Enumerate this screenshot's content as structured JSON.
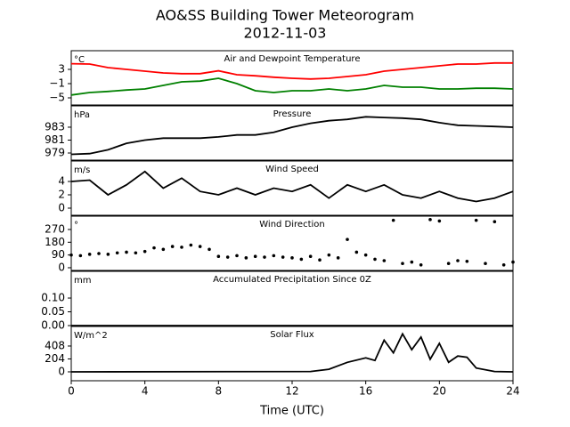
{
  "title": "AO&SS Building Tower Meteorogram",
  "subtitle": "2012-11-03",
  "xlabel": "Time (UTC)",
  "chart_data": [
    {
      "type": "line",
      "title": "Air and Dewpoint Temperature",
      "unit": "°C",
      "xlim": [
        0,
        24
      ],
      "ylim": [
        -7,
        8.25
      ],
      "yticks": [
        {
          "value": -5,
          "label": "−5"
        },
        {
          "value": -1,
          "label": "−1"
        },
        3
      ],
      "x": [
        0,
        1,
        2,
        3,
        4,
        5,
        6,
        7,
        8,
        9,
        10,
        11,
        12,
        13,
        14,
        15,
        16,
        17,
        18,
        19,
        20,
        21,
        22,
        23,
        24
      ],
      "series": [
        {
          "name": "Air Temperature",
          "color": "#ff0000",
          "values": [
            4.6,
            4.5,
            3.5,
            3,
            2.5,
            2,
            1.8,
            1.8,
            2.6,
            1.5,
            1.2,
            0.8,
            0.5,
            0.3,
            0.5,
            1,
            1.5,
            2.5,
            3,
            3.5,
            4,
            4.5,
            4.5,
            4.8,
            4.8
          ]
        },
        {
          "name": "Dewpoint",
          "color": "#008000",
          "values": [
            -4.2,
            -3.5,
            -3.2,
            -2.8,
            -2.5,
            -1.5,
            -0.5,
            -0.3,
            0.5,
            -1,
            -3,
            -3.5,
            -3,
            -3,
            -2.5,
            -3,
            -2.5,
            -1.5,
            -2,
            -2,
            -2.5,
            -2.5,
            -2.3,
            -2.3,
            -2.5
          ]
        }
      ]
    },
    {
      "type": "line",
      "title": "Pressure",
      "unit": "hPa",
      "xlim": [
        0,
        24
      ],
      "ylim": [
        977.9,
        986.3
      ],
      "yticks": [
        979,
        981,
        983
      ],
      "x": [
        0,
        1,
        2,
        3,
        4,
        5,
        6,
        7,
        8,
        9,
        10,
        11,
        12,
        13,
        14,
        15,
        16,
        17,
        18,
        19,
        20,
        21,
        22,
        23,
        24
      ],
      "series": [
        {
          "name": "Pressure",
          "color": "#000000",
          "values": [
            978.8,
            978.9,
            979.5,
            980.5,
            981,
            981.3,
            981.3,
            981.3,
            981.5,
            981.8,
            981.8,
            982.2,
            983,
            983.6,
            984,
            984.2,
            984.6,
            984.5,
            984.4,
            984.2,
            983.7,
            983.3,
            983.2,
            983.1,
            983
          ]
        }
      ]
    },
    {
      "type": "line",
      "title": "Wind Speed",
      "unit": "m/s",
      "xlim": [
        0,
        24
      ],
      "ylim": [
        -1.07,
        7.07
      ],
      "yticks": [
        0,
        2,
        4
      ],
      "x": [
        0,
        1,
        2,
        3,
        4,
        5,
        6,
        7,
        8,
        9,
        10,
        11,
        12,
        13,
        14,
        15,
        16,
        17,
        18,
        19,
        20,
        21,
        22,
        23,
        24
      ],
      "series": [
        {
          "name": "Wind Speed",
          "color": "#000000",
          "values": [
            4,
            4.2,
            2,
            3.5,
            5.5,
            3,
            4.5,
            2.5,
            2,
            3,
            2,
            3,
            2.5,
            3.5,
            1.5,
            3.5,
            2.5,
            3.5,
            2,
            1.5,
            2.5,
            1.5,
            1,
            1.5,
            2.5
          ]
        }
      ]
    },
    {
      "type": "scatter",
      "title": "Wind Direction",
      "unit": "°",
      "xlim": [
        0,
        24
      ],
      "ylim": [
        -19,
        364
      ],
      "yticks": [
        0,
        90,
        180,
        270
      ],
      "x": [
        0,
        0.5,
        1,
        1.5,
        2,
        2.5,
        3,
        3.5,
        4,
        4.5,
        5,
        5.5,
        6,
        6.5,
        7,
        7.5,
        8,
        8.5,
        9,
        9.5,
        10,
        10.5,
        11,
        11.5,
        12,
        12.5,
        13,
        13.5,
        14,
        14.5,
        15,
        15.5,
        16,
        16.5,
        17,
        17.5,
        18,
        18.5,
        19,
        19.5,
        20,
        20.5,
        21,
        21.5,
        22,
        22.5,
        23,
        23.5,
        24
      ],
      "series": [
        {
          "name": "Wind Direction",
          "color": "#000000",
          "values": [
            90,
            85,
            95,
            100,
            95,
            105,
            110,
            105,
            115,
            140,
            130,
            150,
            145,
            160,
            150,
            130,
            80,
            75,
            85,
            70,
            80,
            75,
            85,
            75,
            70,
            60,
            80,
            55,
            90,
            70,
            200,
            110,
            90,
            60,
            50,
            335,
            30,
            40,
            20,
            340,
            330,
            30,
            50,
            45,
            335,
            30,
            325,
            20,
            40
          ]
        }
      ]
    },
    {
      "type": "line",
      "title": "Accumulated Precipitation Since 0Z",
      "unit": "mm",
      "xlim": [
        0,
        24
      ],
      "ylim": [
        0,
        0.197
      ],
      "yticks": [
        {
          "value": 0,
          "label": "0.00"
        },
        {
          "value": 0.05,
          "label": "0.05"
        },
        {
          "value": 0.1,
          "label": "0.10"
        }
      ],
      "x": [
        0,
        24
      ],
      "series": [
        {
          "name": "Precipitation",
          "color": "#000000",
          "values": [
            0,
            0
          ]
        }
      ]
    },
    {
      "type": "line",
      "title": "Solar Flux",
      "unit": "W/m^2",
      "xlim": [
        0,
        24
      ],
      "ylim": [
        -141,
        717
      ],
      "yticks": [
        0,
        204,
        408
      ],
      "xticks": [
        0,
        4,
        8,
        12,
        16,
        20,
        24
      ],
      "x": [
        0,
        13,
        14,
        15,
        16,
        16.5,
        17,
        17.5,
        18,
        18.5,
        19,
        19.5,
        20,
        20.5,
        21,
        21.5,
        22,
        23,
        24
      ],
      "series": [
        {
          "name": "Solar Flux",
          "color": "#000000",
          "values": [
            0,
            5,
            40,
            150,
            220,
            180,
            500,
            300,
            600,
            350,
            550,
            200,
            450,
            150,
            250,
            230,
            60,
            5,
            0
          ]
        }
      ]
    }
  ]
}
